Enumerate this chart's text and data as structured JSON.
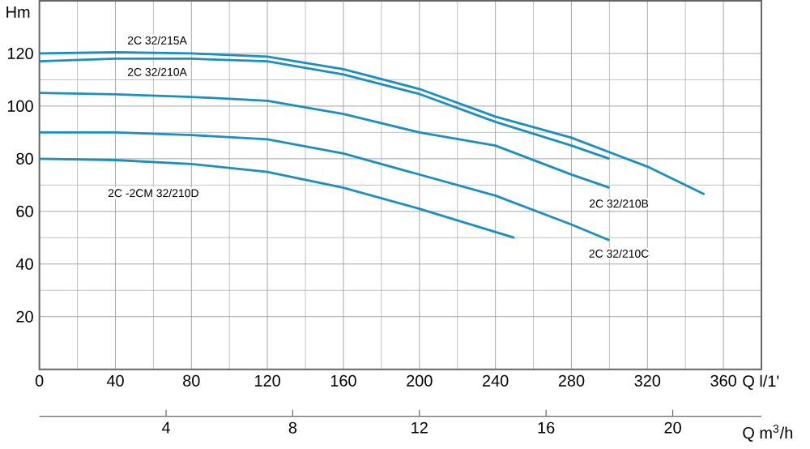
{
  "chart_data": {
    "type": "line",
    "xlabel": "Q l/1'",
    "ylabel": "Hm",
    "x2label": "Q m$^{3}$/h",
    "xlim": [
      0,
      380
    ],
    "xticks": [
      0,
      40,
      80,
      120,
      160,
      200,
      240,
      280,
      320,
      360
    ],
    "ylim": [
      0,
      140
    ],
    "yticks": [
      20,
      40,
      60,
      80,
      100,
      120
    ],
    "x2lim": [
      0,
      22.8
    ],
    "x2ticks": [
      4,
      8,
      12,
      16,
      20
    ],
    "grid": true,
    "series": [
      {
        "name": "2C 32/215A",
        "color": "#1b8ec2",
        "x": [
          0,
          40,
          80,
          120,
          160,
          200,
          240,
          280,
          320,
          350
        ],
        "values": [
          120,
          120.5,
          120,
          118.8,
          114,
          106.5,
          96,
          88,
          77,
          66.5
        ]
      },
      {
        "name": "2C 32/210A",
        "color": "#1b8ec2",
        "x": [
          0,
          40,
          80,
          120,
          160,
          200,
          240,
          280,
          300
        ],
        "values": [
          117,
          118,
          118,
          117,
          112,
          104.6,
          94,
          85,
          80
        ]
      },
      {
        "name": "2C 32/210B",
        "color": "#1b8ec2",
        "x": [
          0,
          40,
          80,
          120,
          160,
          200,
          240,
          280,
          300
        ],
        "values": [
          105,
          104.5,
          103.5,
          102,
          97,
          90,
          85,
          74,
          69
        ]
      },
      {
        "name": "2C 32/210C",
        "color": "#1b8ec2",
        "x": [
          0,
          40,
          80,
          120,
          160,
          200,
          240,
          280,
          300
        ],
        "values": [
          90,
          90,
          89,
          87.4,
          82,
          74,
          66,
          55,
          49
        ]
      },
      {
        "name": "2C -2CM 32/210D",
        "color": "#1b8ec2",
        "x": [
          0,
          40,
          80,
          120,
          160,
          200,
          250
        ],
        "values": [
          80,
          79.5,
          78,
          75,
          69,
          61,
          50
        ]
      }
    ]
  }
}
